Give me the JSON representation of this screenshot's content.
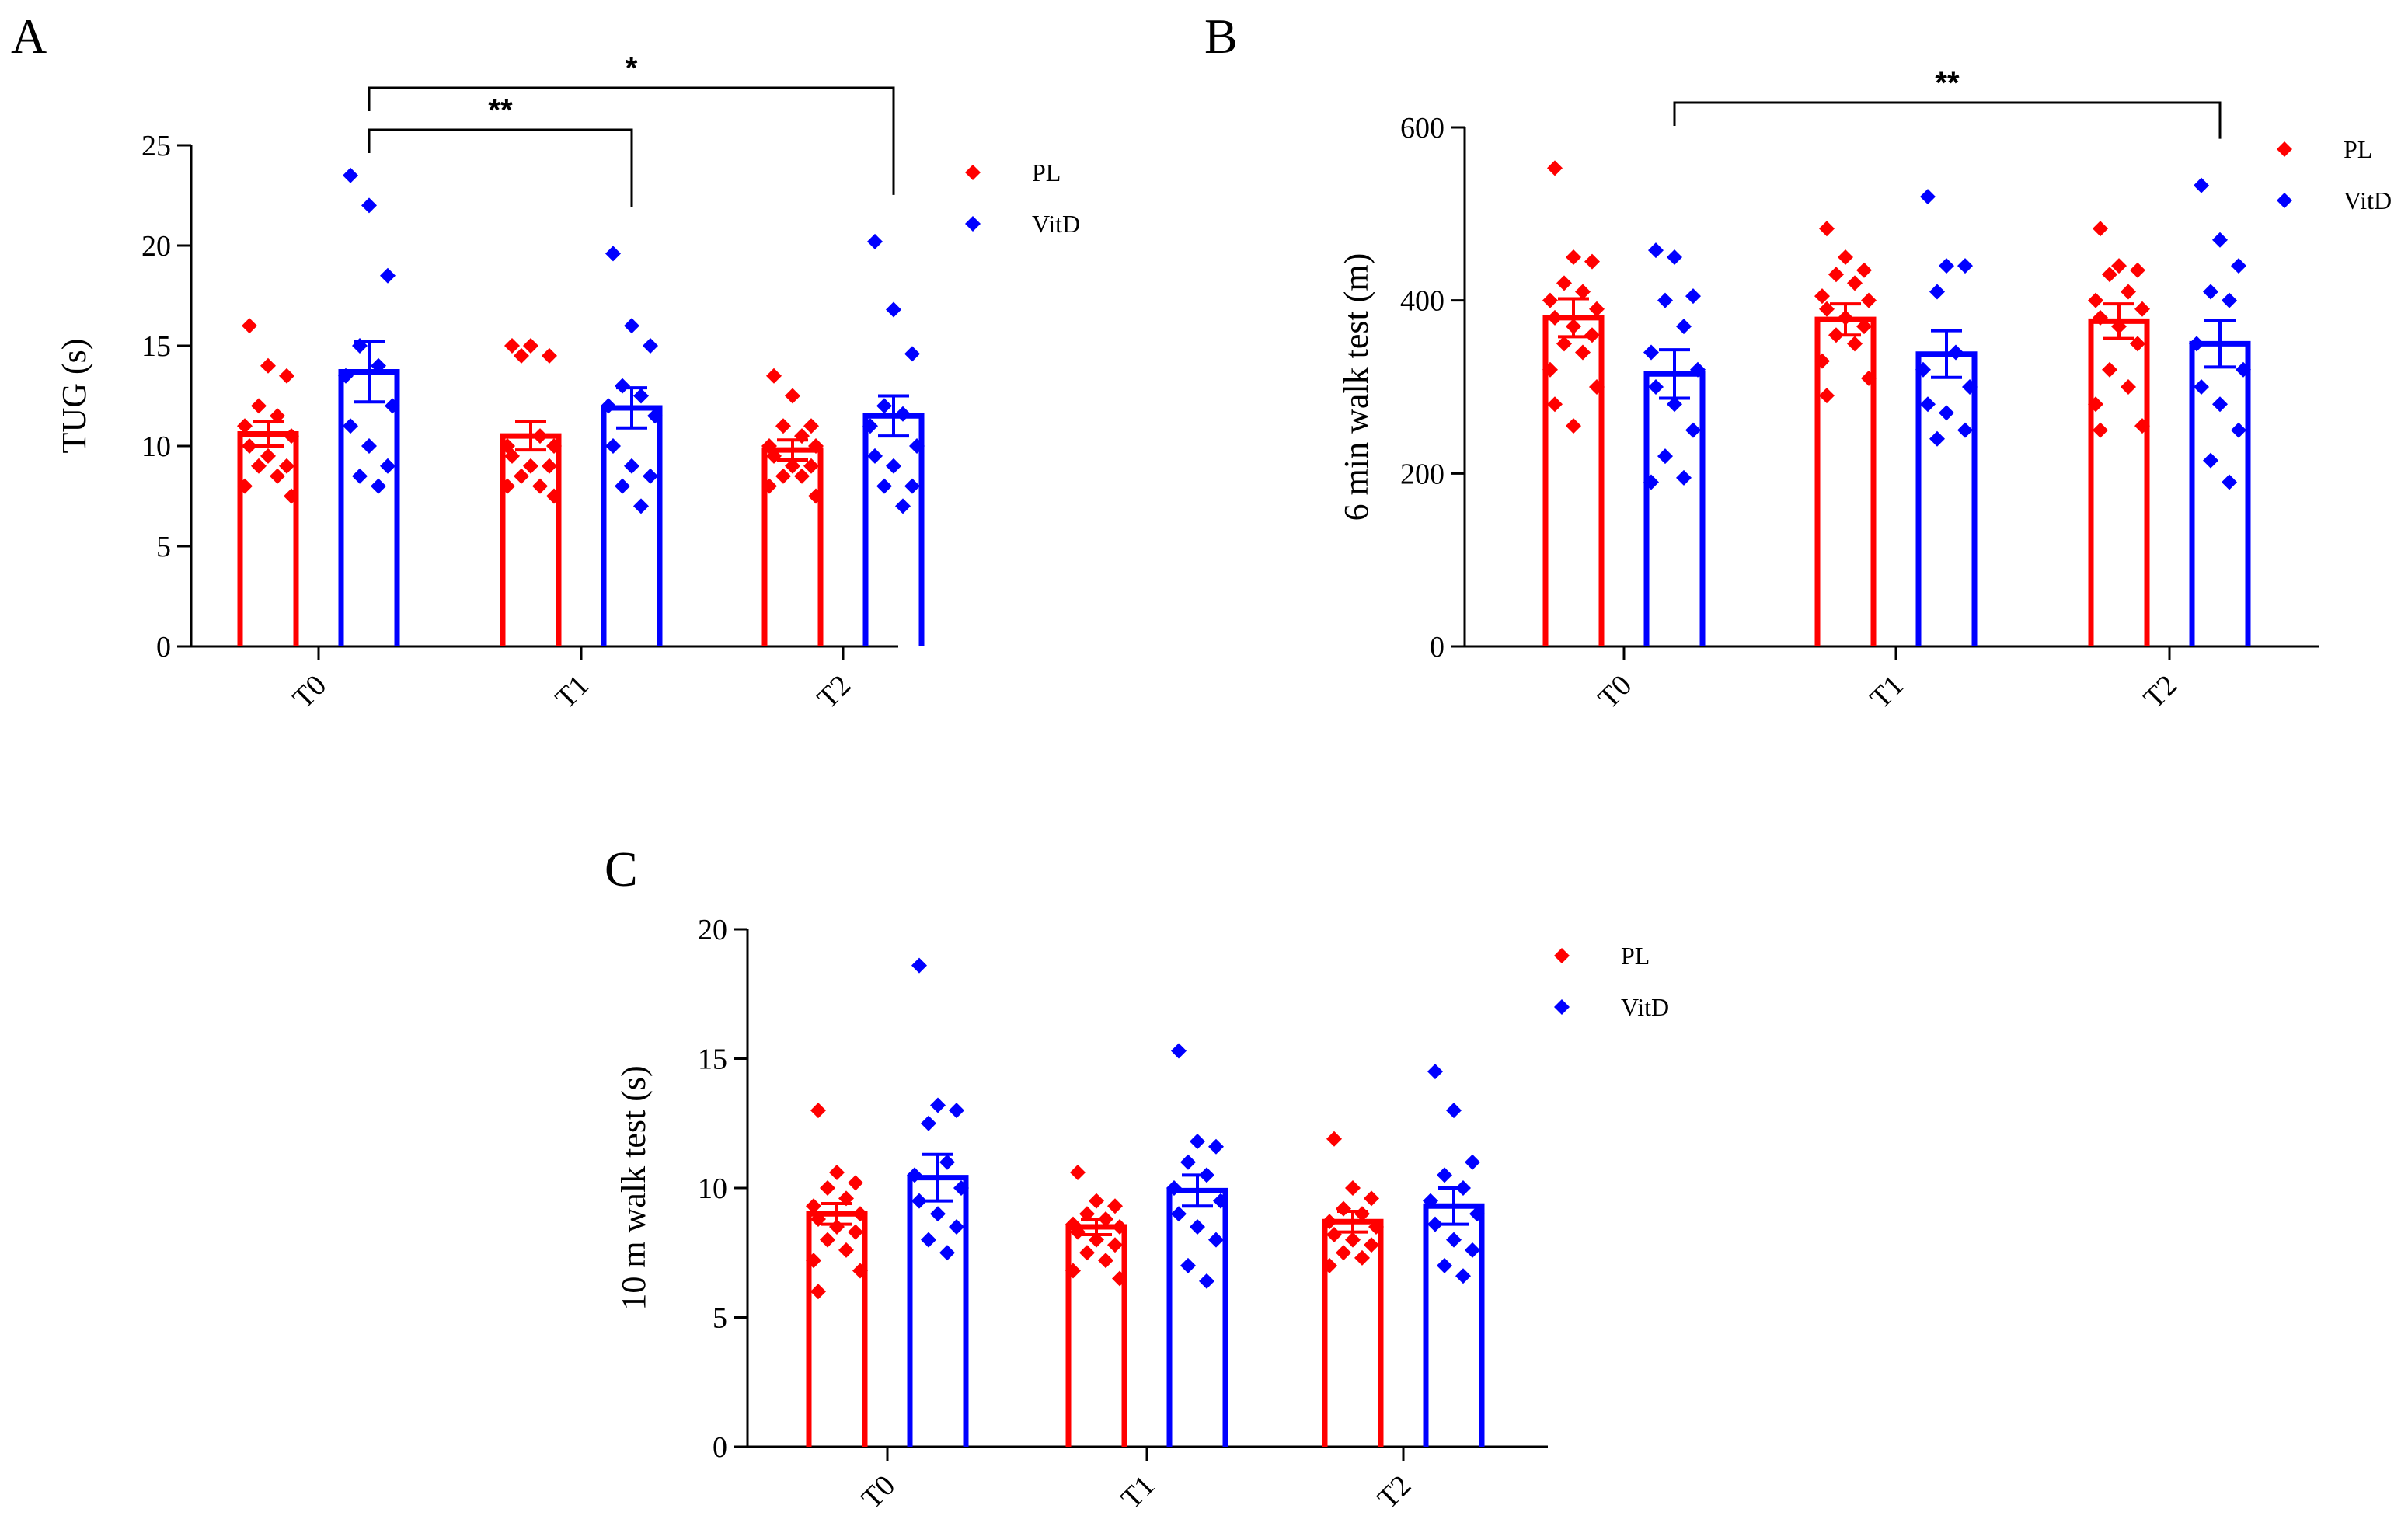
{
  "colors": {
    "PL": "#ff0000",
    "VitD": "#0000ff",
    "axis": "#000000"
  },
  "chart_data": [
    {
      "panel": "A",
      "type": "bar",
      "ylabel": "TUG (s)",
      "ylim": [
        0,
        25
      ],
      "yticks": [
        "0",
        "5",
        "10",
        "15",
        "20",
        "25"
      ],
      "categories": [
        "T0",
        "T1",
        "T2"
      ],
      "legend": [
        "PL",
        "VitD"
      ],
      "series": [
        {
          "name": "PL",
          "values": [
            10.6,
            10.5,
            9.8
          ],
          "sem": [
            0.6,
            0.7,
            0.5
          ],
          "points": [
            [
              16.0,
              14.0,
              13.5,
              12.0,
              11.5,
              11.0,
              10.5,
              10.0,
              9.5,
              9.0,
              9.0,
              8.5,
              8.0,
              7.5
            ],
            [
              15.0,
              15.0,
              14.5,
              14.5,
              10.5,
              10.0,
              10.0,
              9.5,
              9.0,
              9.0,
              8.5,
              8.0,
              8.0,
              7.5
            ],
            [
              13.5,
              12.5,
              11.0,
              11.0,
              10.5,
              10.0,
              10.0,
              9.5,
              9.0,
              9.0,
              8.5,
              8.5,
              8.0,
              7.5
            ]
          ]
        },
        {
          "name": "VitD",
          "values": [
            13.7,
            11.9,
            11.5
          ],
          "sem": [
            1.5,
            1.0,
            1.0
          ],
          "points": [
            [
              23.5,
              22.0,
              18.5,
              15.0,
              14.0,
              13.5,
              12.0,
              11.0,
              10.0,
              9.0,
              8.5,
              8.0
            ],
            [
              19.6,
              16.0,
              15.0,
              13.0,
              12.5,
              12.0,
              11.5,
              10.0,
              9.0,
              8.5,
              8.0,
              7.0
            ],
            [
              20.2,
              16.8,
              14.6,
              12.0,
              11.6,
              11.0,
              10.0,
              9.5,
              9.0,
              8.0,
              8.0,
              7.0
            ]
          ]
        }
      ],
      "significance": [
        {
          "from": 0,
          "to": 1,
          "label": "**"
        },
        {
          "from": 0,
          "to": 2,
          "label": "*"
        }
      ]
    },
    {
      "panel": "B",
      "type": "bar",
      "ylabel": "6 min walk test (m)",
      "ylim": [
        0,
        600
      ],
      "yticks": [
        "0",
        "200",
        "400",
        "600"
      ],
      "categories": [
        "T0",
        "T1",
        "T2"
      ],
      "legend": [
        "PL",
        "VitD"
      ],
      "series": [
        {
          "name": "PL",
          "values": [
            380,
            378,
            376
          ],
          "sem": [
            22,
            18,
            20
          ],
          "points": [
            [
              553,
              450,
              445,
              420,
              410,
              400,
              390,
              380,
              370,
              360,
              350,
              340,
              320,
              300,
              280,
              255
            ],
            [
              483,
              450,
              435,
              430,
              420,
              405,
              400,
              390,
              380,
              370,
              360,
              350,
              330,
              310,
              290
            ],
            [
              483,
              440,
              435,
              430,
              410,
              400,
              390,
              380,
              370,
              350,
              320,
              300,
              280,
              255,
              250
            ]
          ]
        },
        {
          "name": "VitD",
          "values": [
            315,
            338,
            350
          ],
          "sem": [
            28,
            27,
            27
          ],
          "points": [
            [
              458,
              450,
              405,
              400,
              370,
              340,
              320,
              300,
              280,
              250,
              220,
              195,
              190
            ],
            [
              520,
              440,
              440,
              410,
              340,
              320,
              300,
              280,
              270,
              250,
              240
            ],
            [
              533,
              470,
              440,
              410,
              400,
              350,
              320,
              300,
              280,
              250,
              215,
              190
            ]
          ]
        }
      ],
      "significance": [
        {
          "from": 0,
          "to": 2,
          "label": "**"
        }
      ]
    },
    {
      "panel": "C",
      "type": "bar",
      "ylabel": "10 m walk test (s)",
      "ylim": [
        0,
        20
      ],
      "yticks": [
        "0",
        "5",
        "10",
        "15",
        "20"
      ],
      "categories": [
        "T0",
        "T1",
        "T2"
      ],
      "legend": [
        "PL",
        "VitD"
      ],
      "series": [
        {
          "name": "PL",
          "values": [
            9.0,
            8.5,
            8.7
          ],
          "sem": [
            0.4,
            0.3,
            0.4
          ],
          "points": [
            [
              13.0,
              10.6,
              10.2,
              10.0,
              9.6,
              9.3,
              9.0,
              8.8,
              8.5,
              8.3,
              8.0,
              7.6,
              7.2,
              6.8,
              6.0
            ],
            [
              10.6,
              9.5,
              9.3,
              9.0,
              8.8,
              8.6,
              8.5,
              8.3,
              8.0,
              7.8,
              7.5,
              7.2,
              6.8,
              6.5
            ],
            [
              11.9,
              10.0,
              9.6,
              9.2,
              9.0,
              8.7,
              8.5,
              8.2,
              8.0,
              7.8,
              7.5,
              7.3,
              7.0
            ]
          ]
        },
        {
          "name": "VitD",
          "values": [
            10.4,
            9.9,
            9.3
          ],
          "sem": [
            0.9,
            0.6,
            0.7
          ],
          "points": [
            [
              18.6,
              13.2,
              13.0,
              12.5,
              11.0,
              10.5,
              10.0,
              9.5,
              9.0,
              8.5,
              8.0,
              7.5
            ],
            [
              15.3,
              11.8,
              11.6,
              11.0,
              10.5,
              10.0,
              9.5,
              9.0,
              8.5,
              8.0,
              7.0,
              6.4
            ],
            [
              14.5,
              13.0,
              11.0,
              10.5,
              10.0,
              9.5,
              9.0,
              8.6,
              8.0,
              7.6,
              7.0,
              6.6
            ]
          ]
        }
      ],
      "significance": []
    }
  ]
}
